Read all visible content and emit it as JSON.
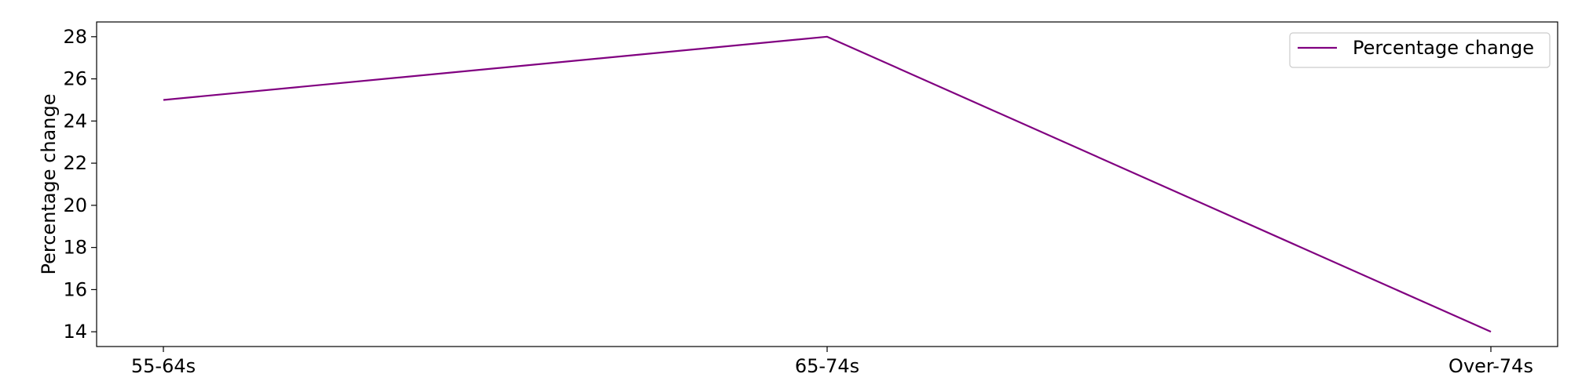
{
  "chart_data": {
    "type": "line",
    "categories": [
      "55-64s",
      "65-74s",
      "Over-74s"
    ],
    "series": [
      {
        "name": "Percentage change",
        "values": [
          25,
          28,
          14
        ],
        "color": "#800080"
      }
    ],
    "xlabel": "",
    "ylabel": "Percentage change",
    "ylim": [
      13.3,
      28.7
    ],
    "yticks": [
      14,
      16,
      18,
      20,
      22,
      24,
      26,
      28
    ],
    "grid": false,
    "legend_position": "top-right"
  }
}
